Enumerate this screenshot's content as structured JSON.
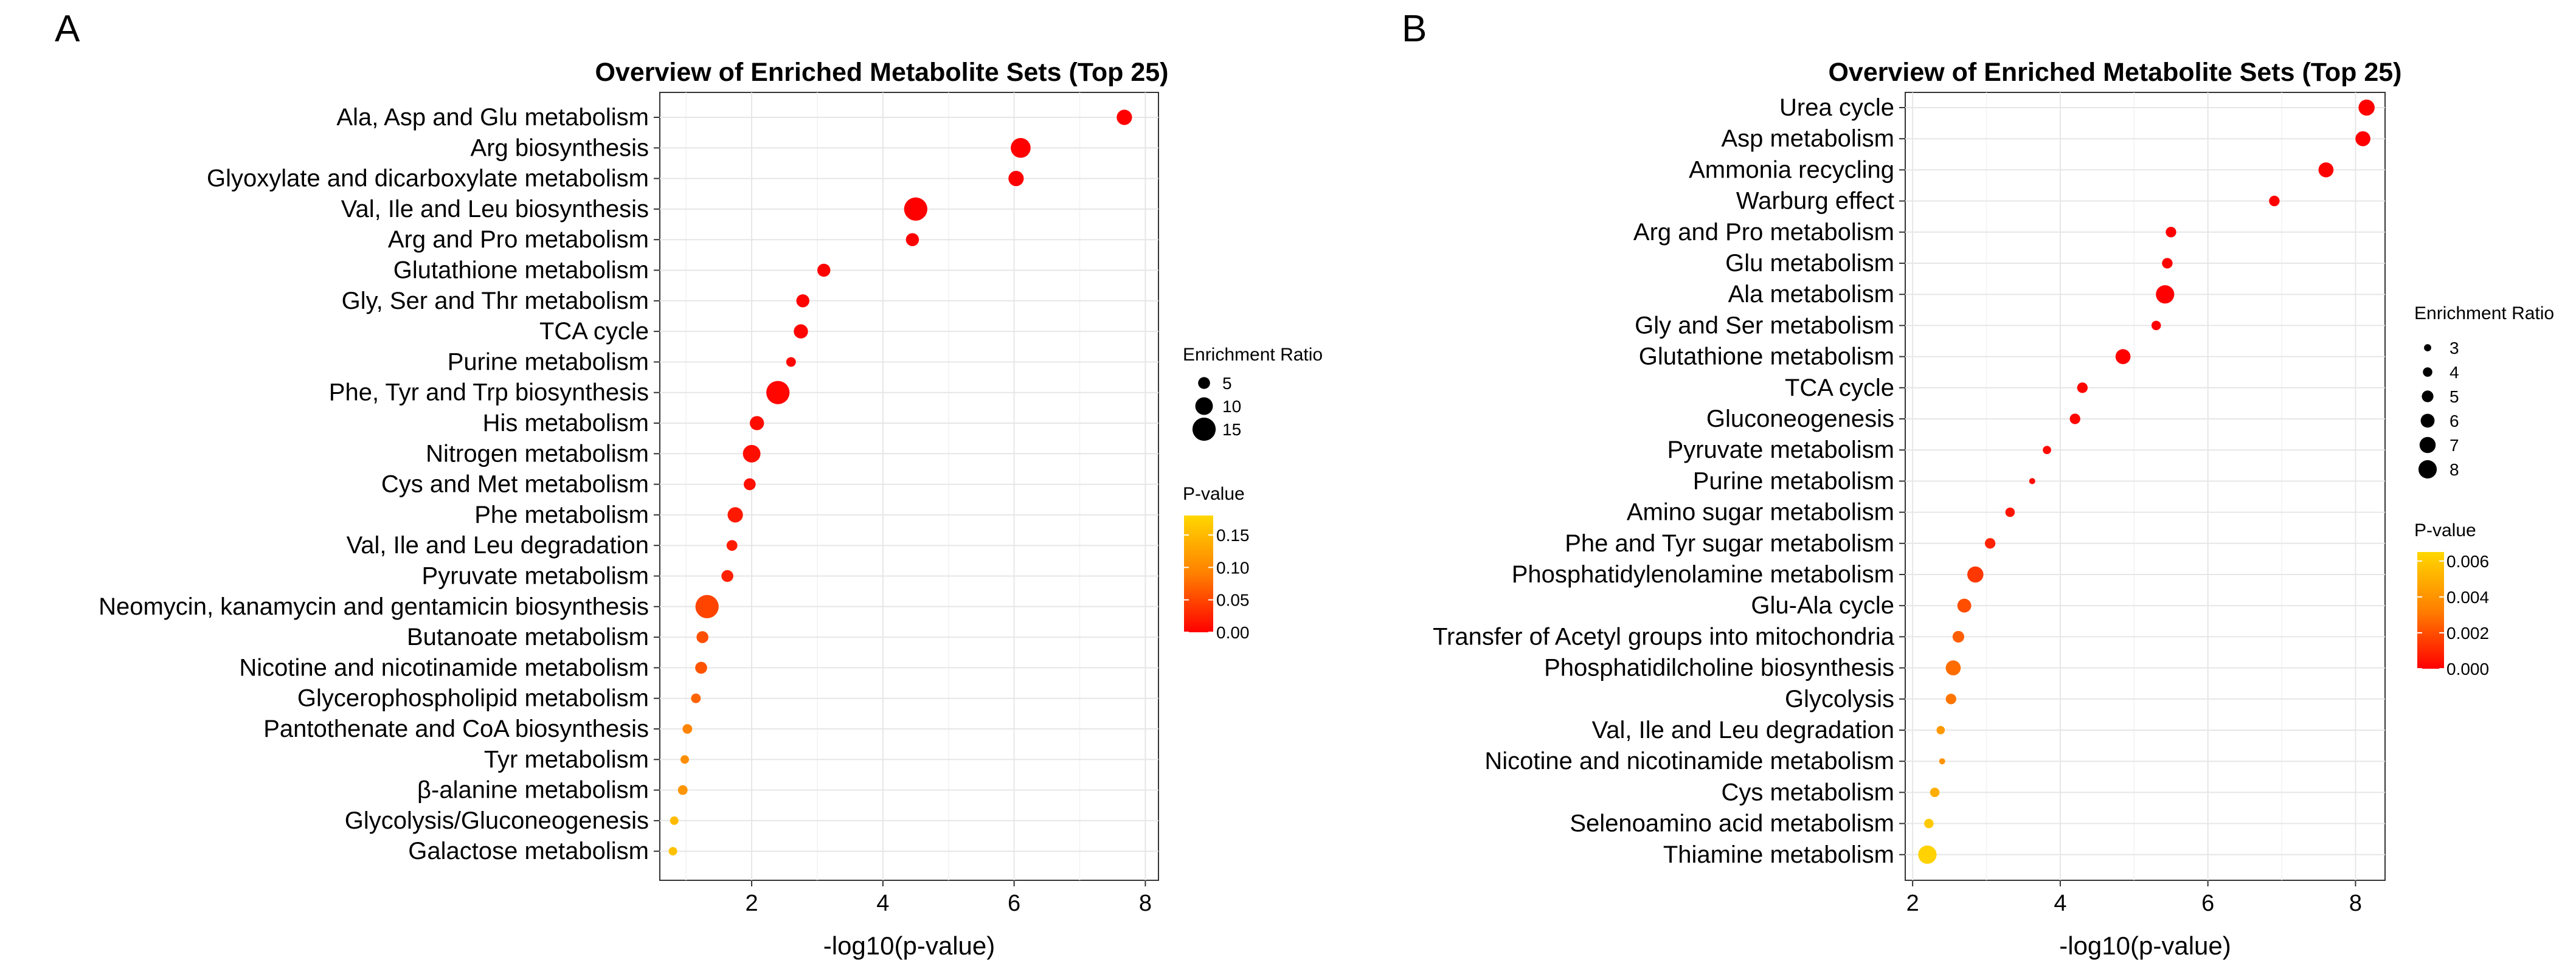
{
  "chart_data": [
    {
      "panel": "A",
      "type": "scatter",
      "title": "Overview of Enriched Metabolite Sets (Top 25)",
      "xlabel": "-log10(p-value)",
      "ylabel": "",
      "xlim": [
        0.6,
        8.2
      ],
      "xticks": [
        2,
        4,
        6,
        8
      ],
      "size_legend_title": "Enrichment Ratio",
      "size_legend": [
        5,
        10,
        15
      ],
      "size_range": [
        2,
        17
      ],
      "color_legend_title": "P-value",
      "color_range": [
        0,
        0.18
      ],
      "color_ticks": [
        "0.15",
        "0.10",
        "0.05",
        "0.00"
      ],
      "color_tick_values": [
        0.15,
        0.1,
        0.05,
        0.0
      ],
      "points": [
        {
          "label": "Ala, Asp and Glu metabolism",
          "x": 7.68,
          "ratio": 8,
          "p": 0.0
        },
        {
          "label": "Arg biosynthesis",
          "x": 6.1,
          "ratio": 12,
          "p": 0.0
        },
        {
          "label": "Glyoxylate and dicarboxylate metabolism",
          "x": 6.03,
          "ratio": 8,
          "p": 0.0
        },
        {
          "label": "Val, Ile and Leu biosynthesis",
          "x": 4.5,
          "ratio": 15,
          "p": 0.0
        },
        {
          "label": "Arg and Pro metabolism",
          "x": 4.45,
          "ratio": 6,
          "p": 0.0
        },
        {
          "label": "Glutathione metabolism",
          "x": 3.1,
          "ratio": 6,
          "p": 0.001
        },
        {
          "label": "Gly, Ser and Thr metabolism",
          "x": 2.78,
          "ratio": 6,
          "p": 0.002
        },
        {
          "label": "TCA cycle",
          "x": 2.75,
          "ratio": 7,
          "p": 0.002
        },
        {
          "label": "Purine metabolism",
          "x": 2.6,
          "ratio": 3,
          "p": 0.003
        },
        {
          "label": "Phe, Tyr and Trp biosynthesis",
          "x": 2.4,
          "ratio": 15,
          "p": 0.004
        },
        {
          "label": "His metabolism",
          "x": 2.08,
          "ratio": 7,
          "p": 0.008
        },
        {
          "label": "Nitrogen metabolism",
          "x": 2.0,
          "ratio": 10,
          "p": 0.01
        },
        {
          "label": "Cys and Met metabolism",
          "x": 1.97,
          "ratio": 5,
          "p": 0.011
        },
        {
          "label": "Phe metabolism",
          "x": 1.75,
          "ratio": 8,
          "p": 0.018
        },
        {
          "label": "Val, Ile and Leu degradation",
          "x": 1.7,
          "ratio": 4,
          "p": 0.02
        },
        {
          "label": "Pyruvate metabolism",
          "x": 1.63,
          "ratio": 5,
          "p": 0.023
        },
        {
          "label": "Neomycin, kanamycin and gentamicin biosynthesis",
          "x": 1.32,
          "ratio": 15,
          "p": 0.048
        },
        {
          "label": "Butanoate metabolism",
          "x": 1.25,
          "ratio": 5,
          "p": 0.056
        },
        {
          "label": "Nicotine and nicotinamide metabolism",
          "x": 1.23,
          "ratio": 5,
          "p": 0.059
        },
        {
          "label": "Glycerophospholipid metabolism",
          "x": 1.15,
          "ratio": 3,
          "p": 0.071
        },
        {
          "label": "Pantothenate and CoA biosynthesis",
          "x": 1.02,
          "ratio": 3,
          "p": 0.095
        },
        {
          "label": "Tyr metabolism",
          "x": 0.98,
          "ratio": 2,
          "p": 0.105
        },
        {
          "label": "β-alanine metabolism",
          "x": 0.95,
          "ratio": 3,
          "p": 0.112
        },
        {
          "label": "Glycolysis/Gluconeogenesis",
          "x": 0.82,
          "ratio": 2,
          "p": 0.151
        },
        {
          "label": "Galactose metabolism",
          "x": 0.8,
          "ratio": 2,
          "p": 0.158
        }
      ]
    },
    {
      "panel": "B",
      "type": "scatter",
      "title": "Overview of Enriched Metabolite Sets (Top 25)",
      "xlabel": "-log10(p-value)",
      "ylabel": "",
      "xlim": [
        1.9,
        8.4
      ],
      "xticks": [
        2,
        4,
        6,
        8
      ],
      "size_legend_title": "Enrichment Ratio",
      "size_legend": [
        3,
        4,
        5,
        6,
        7,
        8
      ],
      "size_range": [
        2.5,
        8.5
      ],
      "color_legend_title": "P-value",
      "color_range": [
        0,
        0.0065
      ],
      "color_ticks": [
        "0.006",
        "0.004",
        "0.002",
        "0.000"
      ],
      "color_tick_values": [
        0.006,
        0.004,
        0.002,
        0.0
      ],
      "points": [
        {
          "label": "Urea cycle",
          "x": 8.15,
          "ratio": 7,
          "p": 0.0
        },
        {
          "label": "Asp metabolism",
          "x": 8.1,
          "ratio": 6.5,
          "p": 0.0
        },
        {
          "label": "Ammonia recycling",
          "x": 7.6,
          "ratio": 6.5,
          "p": 0.0
        },
        {
          "label": "Warburg effect",
          "x": 6.9,
          "ratio": 4.5,
          "p": 0.0
        },
        {
          "label": "Arg and Pro metabolism",
          "x": 5.5,
          "ratio": 4.5,
          "p": 0.0
        },
        {
          "label": "Glu metabolism",
          "x": 5.45,
          "ratio": 4.5,
          "p": 0.0
        },
        {
          "label": "Ala metabolism",
          "x": 5.42,
          "ratio": 8,
          "p": 0.0
        },
        {
          "label": "Gly and Ser metabolism",
          "x": 5.3,
          "ratio": 4,
          "p": 0.0
        },
        {
          "label": "Glutathione metabolism",
          "x": 4.85,
          "ratio": 6.5,
          "p": 0.0
        },
        {
          "label": "TCA cycle",
          "x": 4.3,
          "ratio": 4.5,
          "p": 0.0001
        },
        {
          "label": "Gluconeogenesis",
          "x": 4.2,
          "ratio": 4.5,
          "p": 0.0001
        },
        {
          "label": "Pyruvate metabolism",
          "x": 3.82,
          "ratio": 3.5,
          "p": 0.0002
        },
        {
          "label": "Purine metabolism",
          "x": 3.62,
          "ratio": 2.5,
          "p": 0.0002
        },
        {
          "label": "Amino sugar metabolism",
          "x": 3.32,
          "ratio": 4,
          "p": 0.0005
        },
        {
          "label": "Phe and Tyr sugar metabolism",
          "x": 3.05,
          "ratio": 4.5,
          "p": 0.0009
        },
        {
          "label": "Phosphatidylenolamine metabolism",
          "x": 2.85,
          "ratio": 7,
          "p": 0.0014
        },
        {
          "label": "Glu-Ala cycle",
          "x": 2.7,
          "ratio": 6,
          "p": 0.002
        },
        {
          "label": "Transfer of Acetyl groups into mitochondria",
          "x": 2.62,
          "ratio": 5,
          "p": 0.0024
        },
        {
          "label": "Phosphatidilcholine biosynthesis",
          "x": 2.55,
          "ratio": 6.5,
          "p": 0.0028
        },
        {
          "label": "Glycolysis",
          "x": 2.52,
          "ratio": 4.5,
          "p": 0.003
        },
        {
          "label": "Val, Ile and Leu degradation",
          "x": 2.38,
          "ratio": 3.5,
          "p": 0.0042
        },
        {
          "label": "Nicotine and nicotinamide metabolism",
          "x": 2.4,
          "ratio": 2.5,
          "p": 0.004
        },
        {
          "label": "Cys metabolism",
          "x": 2.3,
          "ratio": 4,
          "p": 0.005
        },
        {
          "label": "Selenoamino acid metabolism",
          "x": 2.22,
          "ratio": 4,
          "p": 0.006
        },
        {
          "label": "Thiamine metabolism",
          "x": 2.2,
          "ratio": 8,
          "p": 0.0063
        }
      ]
    }
  ]
}
